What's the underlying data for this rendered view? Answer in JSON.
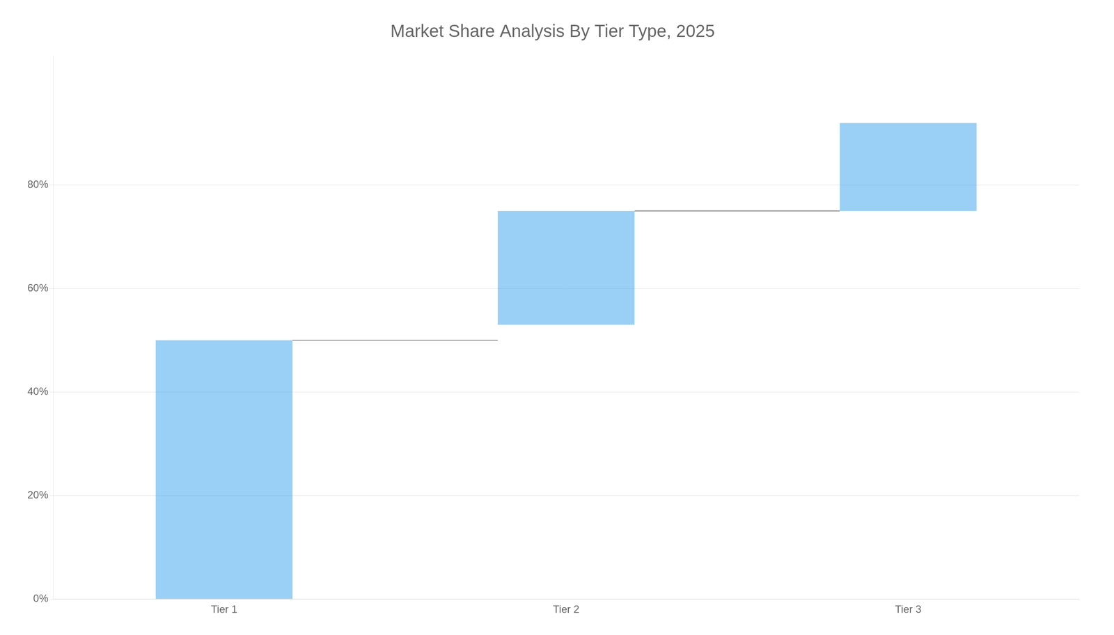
{
  "chart_data": {
    "type": "bar",
    "title": "Market Share Analysis By Tier Type, 2025",
    "categories": [
      "Tier 1",
      "Tier 2",
      "Tier 3"
    ],
    "values": [
      [
        0.0,
        0.5
      ],
      [
        0.53,
        0.75
      ],
      [
        0.75,
        0.92
      ]
    ],
    "ylim": [
      0.0,
      1.05
    ],
    "yticks": [
      {
        "value": 0.0,
        "label": "0%"
      },
      {
        "value": 0.2,
        "label": "20%"
      },
      {
        "value": 0.4,
        "label": "40%"
      },
      {
        "value": 0.6,
        "label": "60%"
      },
      {
        "value": 0.8,
        "label": "80%"
      }
    ],
    "grid": true
  }
}
